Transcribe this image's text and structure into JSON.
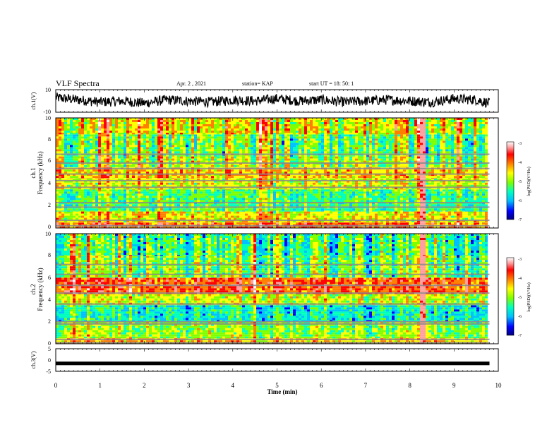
{
  "header": {
    "title": "VLF Spectra",
    "date": "Apr. 2 , 2021",
    "station": "station= KAP",
    "start": "start UT = 18: 50: 1"
  },
  "panels": {
    "ch1_waveform": {
      "ylabel": "ch.1(V)",
      "ticks": [
        "10",
        "-10"
      ]
    },
    "ch1_spectrogram": {
      "ylabel_channel": "ch.1",
      "ylabel": "Frequency (kHz)",
      "ticks": [
        "0",
        "2",
        "4",
        "6",
        "8",
        "10"
      ]
    },
    "ch2_spectrogram": {
      "ylabel_channel": "ch.2",
      "ylabel": "Frequency (kHz)",
      "ticks": [
        "0",
        "2",
        "4",
        "6",
        "8",
        "10"
      ]
    },
    "ch3_waveform": {
      "ylabel": "ch.3(V)",
      "ticks": [
        "5",
        "0",
        "-5"
      ]
    }
  },
  "colorbar": {
    "label": "log(PSD)(V²/Hz)",
    "ticks": [
      "-3",
      "-4",
      "-5",
      "-6",
      "-7"
    ]
  },
  "xaxis": {
    "label": "Time (min)",
    "ticks": [
      "0",
      "1",
      "2",
      "3",
      "4",
      "5",
      "6",
      "7",
      "8",
      "9",
      "10"
    ]
  },
  "colors": {
    "colormap": [
      "#00007f",
      "#0000ff",
      "#00bfff",
      "#00ffbf",
      "#7fff00",
      "#ffff00",
      "#ff7f00",
      "#ff0000",
      "#ff9f9f",
      "#ffffff"
    ]
  },
  "chart_data": [
    {
      "type": "line",
      "name": "ch.1 waveform",
      "x_units": "min",
      "xlim": [
        0,
        10
      ],
      "ylim": [
        -10,
        10
      ],
      "x": [
        0,
        0.5,
        1,
        1.5,
        2,
        2.5,
        3,
        3.5,
        4,
        4.5,
        5,
        5.5,
        6,
        6.5,
        7,
        7.5,
        8,
        8.5,
        9,
        9.5,
        9.8
      ],
      "y": [
        3,
        1,
        -1,
        0,
        -2,
        1,
        0,
        -1,
        1,
        0,
        2,
        0,
        1,
        -1,
        0,
        1,
        0,
        -1,
        2,
        1,
        -2
      ]
    },
    {
      "type": "heatmap",
      "name": "ch.1 spectrogram",
      "x_units": "min",
      "y_units": "kHz",
      "xlim": [
        0,
        10
      ],
      "ylim": [
        0,
        10
      ],
      "data_end_time": 9.8,
      "colorbar_range": [
        -7,
        -3
      ],
      "bands": [
        {
          "f": [
            0,
            0.5
          ],
          "level": 0.7
        },
        {
          "f": [
            0.5,
            1.5
          ],
          "level": 0.55
        },
        {
          "f": [
            1.5,
            3.5
          ],
          "level": 0.38
        },
        {
          "f": [
            3.5,
            4.5
          ],
          "level": 0.52
        },
        {
          "f": [
            4.5,
            5.5
          ],
          "level": 0.6
        },
        {
          "f": [
            5.5,
            6.5
          ],
          "level": 0.48
        },
        {
          "f": [
            6.5,
            8.5
          ],
          "level": 0.42
        },
        {
          "f": [
            8.5,
            10
          ],
          "level": 0.55
        }
      ],
      "gray_lines_khz": [
        0.2,
        0.7,
        1.9,
        2.3,
        3.7,
        4.3,
        4.9,
        5.4,
        5.9,
        6.7
      ],
      "hot_column_min": 8.25
    },
    {
      "type": "heatmap",
      "name": "ch.2 spectrogram",
      "x_units": "min",
      "y_units": "kHz",
      "xlim": [
        0,
        10
      ],
      "ylim": [
        0,
        10
      ],
      "data_end_time": 9.8,
      "colorbar_range": [
        -7,
        -3
      ],
      "bands": [
        {
          "f": [
            0,
            0.5
          ],
          "level": 0.6
        },
        {
          "f": [
            0.5,
            2.0
          ],
          "level": 0.45
        },
        {
          "f": [
            2.0,
            3.5
          ],
          "level": 0.3
        },
        {
          "f": [
            3.5,
            4.5
          ],
          "level": 0.5
        },
        {
          "f": [
            4.5,
            6.0
          ],
          "level": 0.72
        },
        {
          "f": [
            6.0,
            8.0
          ],
          "level": 0.42
        },
        {
          "f": [
            8.0,
            10
          ],
          "level": 0.36
        }
      ],
      "gray_lines_khz": [
        0.1,
        0.4,
        1.8,
        2.0,
        3.6,
        4.6,
        5.3,
        6.3,
        7.2
      ],
      "hot_column_min": 8.25
    },
    {
      "type": "line",
      "name": "ch.3 waveform",
      "x_units": "min",
      "xlim": [
        0,
        10
      ],
      "ylim": [
        -5,
        5
      ],
      "x": [
        0,
        9.8
      ],
      "y": [
        -1.5,
        -1.5
      ]
    }
  ]
}
